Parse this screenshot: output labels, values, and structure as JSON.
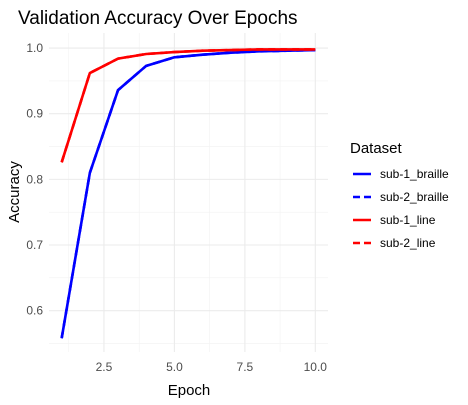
{
  "chart_data": {
    "type": "line",
    "title": "Validation Accuracy Over Epochs",
    "xlabel": "Epoch",
    "ylabel": "Accuracy",
    "xlim": [
      0.55,
      10.45
    ],
    "ylim": [
      0.537,
      1.023
    ],
    "x_ticks": [
      2.5,
      5.0,
      7.5,
      10.0
    ],
    "x_tick_labels": [
      "2.5",
      "5.0",
      "7.5",
      "10.0"
    ],
    "y_ticks": [
      0.6,
      0.7,
      0.8,
      0.9,
      1.0
    ],
    "y_tick_labels": [
      "0.6",
      "0.7",
      "0.8",
      "0.9",
      "1.0"
    ],
    "grid": true,
    "legend_title": "Dataset",
    "legend_position": "right",
    "x": [
      1,
      2,
      3,
      4,
      5,
      6,
      7,
      8,
      9,
      10
    ],
    "series": [
      {
        "name": "sub-1_braille",
        "color": "#0000ff",
        "dash": "solid",
        "values": [
          0.558,
          0.81,
          0.936,
          0.973,
          0.986,
          0.99,
          0.993,
          0.995,
          0.996,
          0.997
        ]
      },
      {
        "name": "sub-2_braille",
        "color": "#0000ff",
        "dash": "dashed",
        "values": [
          0.558,
          0.81,
          0.936,
          0.973,
          0.986,
          0.99,
          0.993,
          0.995,
          0.996,
          0.997
        ]
      },
      {
        "name": "sub-1_line",
        "color": "#ff0000",
        "dash": "solid",
        "values": [
          0.826,
          0.962,
          0.984,
          0.991,
          0.994,
          0.996,
          0.997,
          0.998,
          0.998,
          0.998
        ]
      },
      {
        "name": "sub-2_line",
        "color": "#ff0000",
        "dash": "dashed",
        "values": [
          0.826,
          0.962,
          0.984,
          0.991,
          0.994,
          0.996,
          0.997,
          0.998,
          0.998,
          0.998
        ]
      }
    ]
  }
}
